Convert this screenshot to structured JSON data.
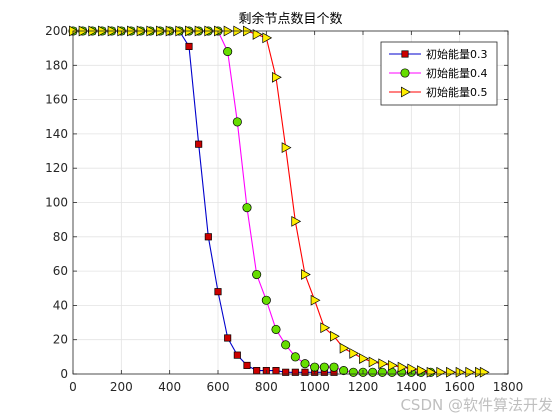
{
  "chart_data": {
    "type": "line",
    "title": "剩余节点数目个数",
    "xlabel": "",
    "ylabel": "",
    "xlim": [
      0,
      1800
    ],
    "ylim": [
      0,
      200
    ],
    "xticks": [
      0,
      200,
      400,
      600,
      800,
      1000,
      1200,
      1400,
      1600,
      1800
    ],
    "yticks": [
      0,
      20,
      40,
      60,
      80,
      100,
      120,
      140,
      160,
      180,
      200
    ],
    "grid": true,
    "legend_position": "top-right",
    "series": [
      {
        "name": "初始能量0.3",
        "color": "#0000cc",
        "marker": "square",
        "marker_fill": "#cc0000",
        "points": [
          [
            0,
            200
          ],
          [
            40,
            200
          ],
          [
            80,
            200
          ],
          [
            120,
            200
          ],
          [
            160,
            200
          ],
          [
            200,
            200
          ],
          [
            240,
            200
          ],
          [
            280,
            200
          ],
          [
            320,
            200
          ],
          [
            360,
            200
          ],
          [
            400,
            200
          ],
          [
            440,
            200
          ],
          [
            480,
            191
          ],
          [
            520,
            134
          ],
          [
            560,
            80
          ],
          [
            600,
            48
          ],
          [
            640,
            21
          ],
          [
            680,
            11
          ],
          [
            720,
            5
          ],
          [
            760,
            2
          ],
          [
            800,
            2
          ],
          [
            840,
            2
          ],
          [
            880,
            1
          ],
          [
            920,
            1
          ],
          [
            960,
            1
          ],
          [
            1000,
            1
          ],
          [
            1040,
            1
          ],
          [
            1080,
            1
          ]
        ]
      },
      {
        "name": "初始能量0.4",
        "color": "#ff00ff",
        "marker": "circle",
        "marker_fill": "#66dd00",
        "points": [
          [
            0,
            200
          ],
          [
            40,
            200
          ],
          [
            80,
            200
          ],
          [
            120,
            200
          ],
          [
            160,
            200
          ],
          [
            200,
            200
          ],
          [
            240,
            200
          ],
          [
            280,
            200
          ],
          [
            320,
            200
          ],
          [
            360,
            200
          ],
          [
            400,
            200
          ],
          [
            440,
            200
          ],
          [
            480,
            200
          ],
          [
            520,
            200
          ],
          [
            560,
            200
          ],
          [
            600,
            200
          ],
          [
            640,
            188
          ],
          [
            680,
            147
          ],
          [
            720,
            97
          ],
          [
            760,
            58
          ],
          [
            800,
            43
          ],
          [
            840,
            26
          ],
          [
            880,
            17
          ],
          [
            920,
            10
          ],
          [
            960,
            6
          ],
          [
            1000,
            4
          ],
          [
            1040,
            4
          ],
          [
            1080,
            4
          ],
          [
            1120,
            2
          ],
          [
            1160,
            1
          ],
          [
            1200,
            1
          ],
          [
            1240,
            1
          ],
          [
            1280,
            1
          ],
          [
            1320,
            1
          ],
          [
            1360,
            1
          ],
          [
            1400,
            1
          ],
          [
            1440,
            1
          ],
          [
            1480,
            1
          ]
        ]
      },
      {
        "name": "初始能量0.5",
        "color": "#ff0000",
        "marker": "triangle-right",
        "marker_fill": "#ffee00",
        "points": [
          [
            0,
            200
          ],
          [
            40,
            200
          ],
          [
            80,
            200
          ],
          [
            120,
            200
          ],
          [
            160,
            200
          ],
          [
            200,
            200
          ],
          [
            240,
            200
          ],
          [
            280,
            200
          ],
          [
            320,
            200
          ],
          [
            360,
            200
          ],
          [
            400,
            200
          ],
          [
            440,
            200
          ],
          [
            480,
            200
          ],
          [
            520,
            200
          ],
          [
            560,
            200
          ],
          [
            600,
            200
          ],
          [
            640,
            200
          ],
          [
            680,
            200
          ],
          [
            720,
            200
          ],
          [
            760,
            198
          ],
          [
            800,
            196
          ],
          [
            840,
            173
          ],
          [
            880,
            132
          ],
          [
            920,
            89
          ],
          [
            960,
            58
          ],
          [
            1000,
            43
          ],
          [
            1040,
            27
          ],
          [
            1080,
            22
          ],
          [
            1120,
            15
          ],
          [
            1160,
            12
          ],
          [
            1200,
            9
          ],
          [
            1240,
            7
          ],
          [
            1280,
            6
          ],
          [
            1320,
            5
          ],
          [
            1360,
            4
          ],
          [
            1400,
            3
          ],
          [
            1440,
            2
          ],
          [
            1480,
            1
          ],
          [
            1520,
            1
          ],
          [
            1560,
            1
          ],
          [
            1600,
            1
          ],
          [
            1640,
            1
          ],
          [
            1680,
            1
          ],
          [
            1700,
            1
          ]
        ]
      }
    ]
  },
  "watermark": "CSDN @软件算法开发"
}
